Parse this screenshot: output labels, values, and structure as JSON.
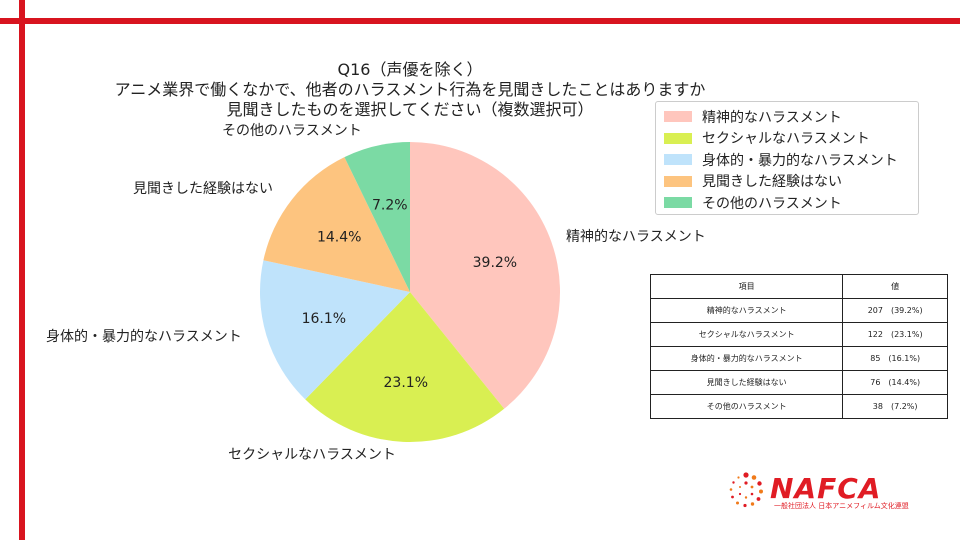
{
  "title": {
    "line1": "Q16（声優を除く）",
    "line2": "アニメ業界で働くなかで、他者のハラスメント行為を見聞きしたことはありますか",
    "line3": "見聞きしたものを選択してください（複数選択可）"
  },
  "chart_data": {
    "type": "pie",
    "categories": [
      "精神的なハラスメント",
      "セクシャルなハラスメント",
      "身体的・暴力的なハラスメント",
      "見聞きした経験はない",
      "その他のハラスメント"
    ],
    "values": [
      39.2,
      23.1,
      16.1,
      14.4,
      7.2
    ],
    "value_labels": [
      "39.2%",
      "23.1%",
      "16.1%",
      "14.4%",
      "7.2%"
    ],
    "colors": [
      "#ffc6bd",
      "#d9ef52",
      "#bfe3fb",
      "#fdc47f",
      "#7bdaa4"
    ],
    "legend_position": "top-right"
  },
  "table": {
    "headers": [
      "項目",
      "値"
    ],
    "rows": [
      [
        "精神的なハラスメント",
        "207　(39.2%)"
      ],
      [
        "セクシャルなハラスメント",
        "122　(23.1%)"
      ],
      [
        "身体的・暴力的なハラスメント",
        "85　(16.1%)"
      ],
      [
        "見聞きした経験はない",
        "76　(14.4%)"
      ],
      [
        "その他のハラスメント",
        "38　(7.2%)"
      ]
    ]
  },
  "logo": {
    "text": "NAFCA",
    "subtitle": "一般社団法人 日本アニメフィルム文化連盟"
  }
}
